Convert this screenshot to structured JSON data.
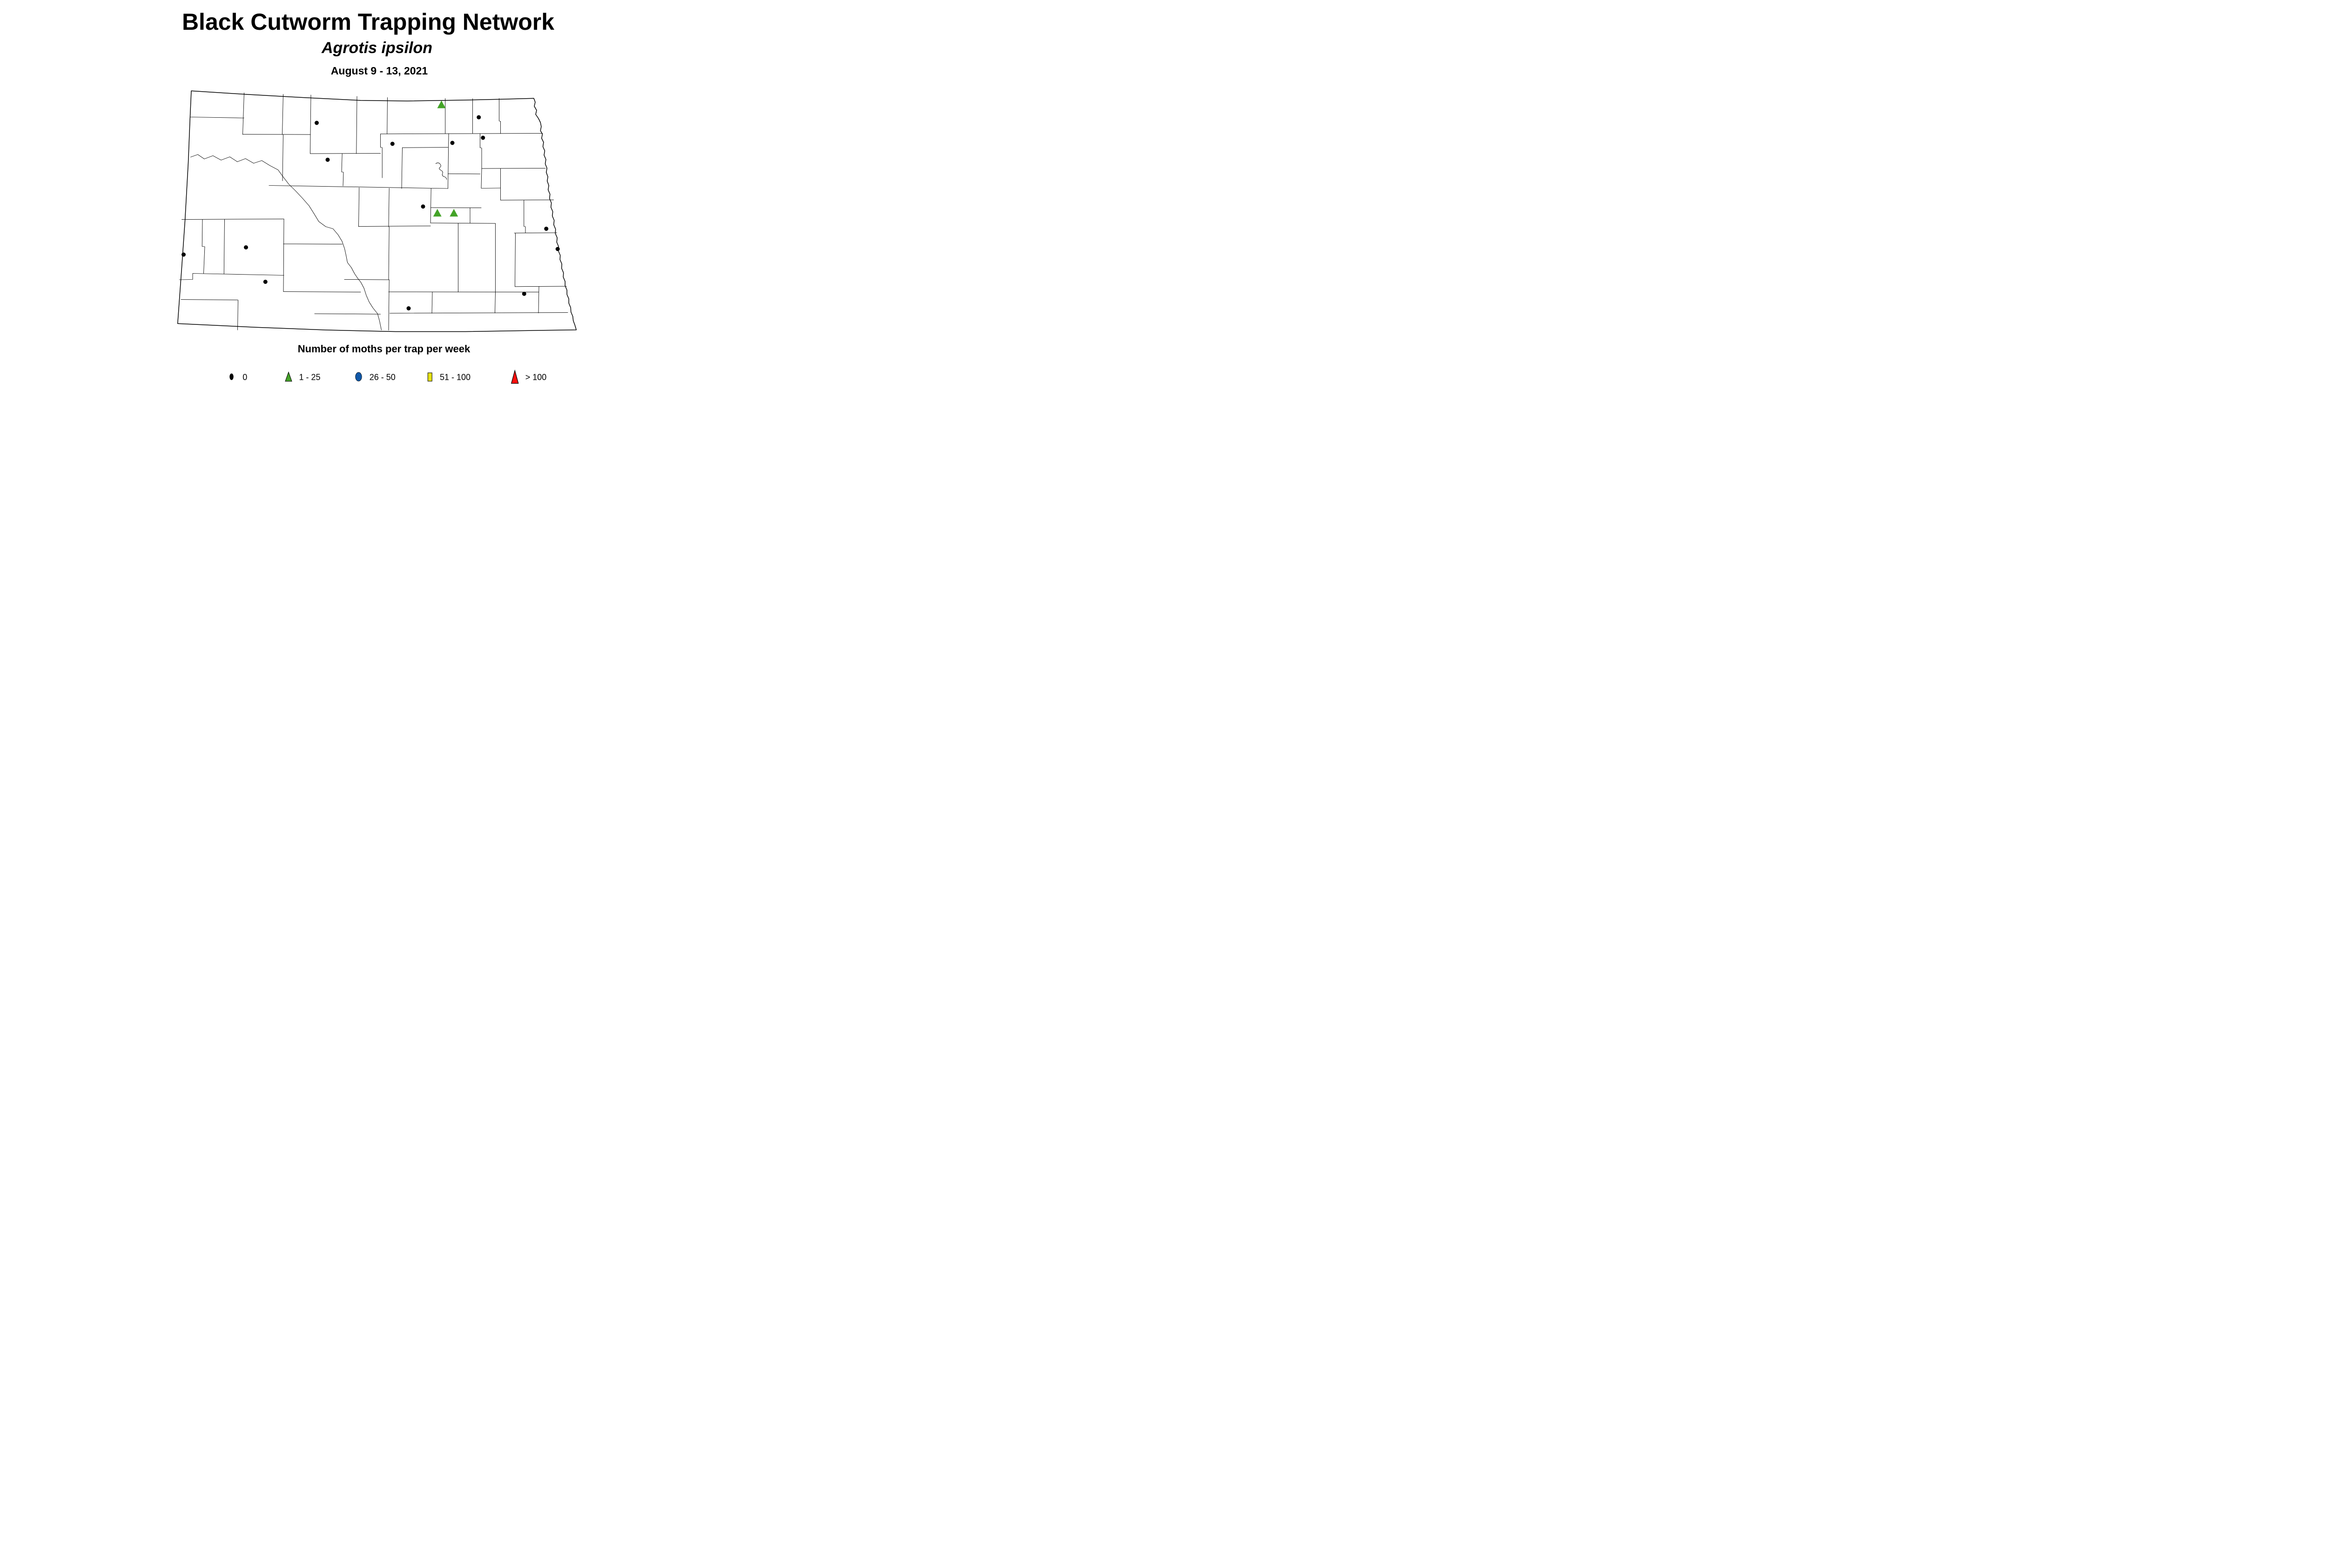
{
  "header": {
    "title": "Black Cutworm Trapping Network",
    "subtitle": "Agrotis ipsilon",
    "date_range": "August 9 - 13, 2021"
  },
  "map": {
    "region": "North Dakota county map",
    "marker_groups": [
      {
        "class_label": "0",
        "shape": "dot",
        "color": "#000000",
        "site_count": 14,
        "sites": [
          [
            2722,
            1058
          ],
          [
            4115,
            1010
          ],
          [
            3373,
            1238
          ],
          [
            3888,
            1230
          ],
          [
            4151,
            1186
          ],
          [
            2816,
            1375
          ],
          [
            3636,
            1777
          ],
          [
            4695,
            1968
          ],
          [
            4793,
            2142
          ],
          [
            1578,
            2190
          ],
          [
            2114,
            2128
          ],
          [
            2281,
            2424
          ],
          [
            4505,
            2527
          ],
          [
            3512,
            2652
          ]
        ]
      },
      {
        "class_label": "1 - 25",
        "shape": "triangle",
        "color": "#43A327",
        "site_count": 3,
        "sites": [
          [
            3794,
            899
          ],
          [
            3759,
            1830
          ],
          [
            3901,
            1830
          ]
        ]
      }
    ]
  },
  "legend": {
    "title": "Number of moths per trap per week",
    "items": [
      {
        "label": "0",
        "shape": "dot",
        "color": "#000000"
      },
      {
        "label": "1 - 25",
        "shape": "triangle",
        "color": "#43A327"
      },
      {
        "label": "26 - 50",
        "shape": "circle",
        "color": "#1058A8"
      },
      {
        "label": "51 - 100",
        "shape": "square",
        "color": "#E6E213"
      },
      {
        "label": "> 100",
        "shape": "triangle-large",
        "color": "#FB100D"
      }
    ]
  }
}
